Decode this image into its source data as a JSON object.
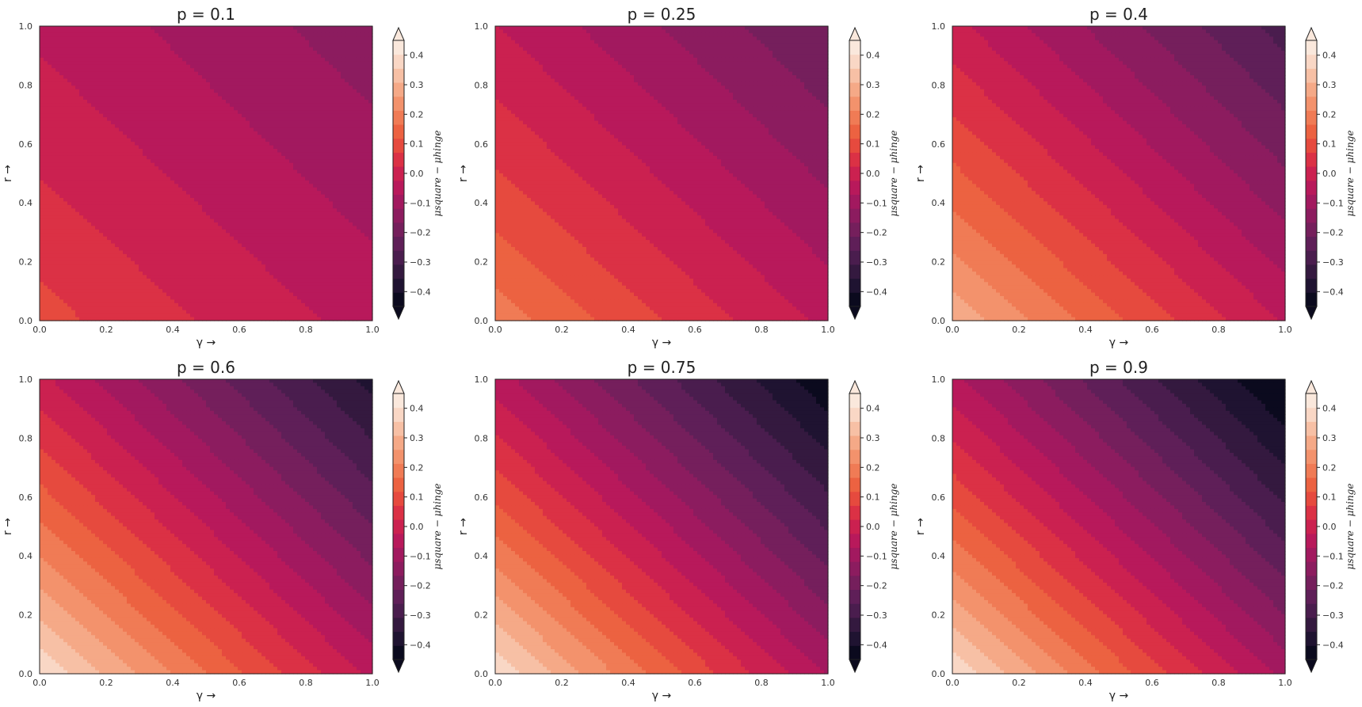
{
  "chart_data": [
    {
      "type": "contour",
      "title": "p = 0.1",
      "p": 0.1,
      "xlabel": "γ →",
      "ylabel": "r →",
      "xlim": [
        0,
        1
      ],
      "ylim": [
        0,
        1
      ],
      "xticks": [
        "0.0",
        "0.2",
        "0.4",
        "0.6",
        "0.8",
        "1.0"
      ],
      "yticks": [
        "0.0",
        "0.2",
        "0.4",
        "0.6",
        "0.8",
        "1.0"
      ],
      "colorbar": {
        "label": "μsquare − μhinge",
        "ticks": [
          "0.4",
          "0.3",
          "0.2",
          "0.1",
          "0.0",
          "−0.1",
          "−0.2",
          "−0.3",
          "−0.4"
        ],
        "range": [
          -0.45,
          0.45
        ],
        "extend": "both"
      },
      "levels_visible": {
        "max_at_origin": 0.1,
        "min_at_top_right": -0.05
      }
    },
    {
      "type": "contour",
      "title": "p = 0.25",
      "p": 0.25,
      "xlabel": "γ →",
      "ylabel": "r →",
      "xlim": [
        0,
        1
      ],
      "ylim": [
        0,
        1
      ],
      "xticks": [
        "0.0",
        "0.2",
        "0.4",
        "0.6",
        "0.8",
        "1.0"
      ],
      "yticks": [
        "0.0",
        "0.2",
        "0.4",
        "0.6",
        "0.8",
        "1.0"
      ],
      "colorbar": {
        "label": "μsquare − μhinge",
        "ticks": [
          "0.4",
          "0.3",
          "0.2",
          "0.1",
          "0.0",
          "−0.1",
          "−0.2",
          "−0.3",
          "−0.4"
        ],
        "range": [
          -0.45,
          0.45
        ],
        "extend": "both"
      },
      "levels_visible": {
        "max_at_origin": 0.25,
        "min_at_top_right": -0.12
      }
    },
    {
      "type": "contour",
      "title": "p = 0.4",
      "p": 0.4,
      "xlabel": "γ →",
      "ylabel": "r →",
      "xlim": [
        0,
        1
      ],
      "ylim": [
        0,
        1
      ],
      "xticks": [
        "0.0",
        "0.2",
        "0.4",
        "0.6",
        "0.8",
        "1.0"
      ],
      "yticks": [
        "0.0",
        "0.2",
        "0.4",
        "0.6",
        "0.8",
        "1.0"
      ],
      "colorbar": {
        "label": "μsquare − μhinge",
        "ticks": [
          "0.4",
          "0.3",
          "0.2",
          "0.1",
          "0.0",
          "−0.1",
          "−0.2",
          "−0.3",
          "−0.4"
        ],
        "range": [
          -0.45,
          0.45
        ],
        "extend": "both"
      },
      "levels_visible": {
        "max_at_origin": 0.35,
        "min_at_top_right": -0.2
      }
    },
    {
      "type": "contour",
      "title": "p = 0.6",
      "p": 0.6,
      "xlabel": "γ →",
      "ylabel": "r →",
      "xlim": [
        0,
        1
      ],
      "ylim": [
        0,
        1
      ],
      "xticks": [
        "0.0",
        "0.2",
        "0.4",
        "0.6",
        "0.8",
        "1.0"
      ],
      "yticks": [
        "0.0",
        "0.2",
        "0.4",
        "0.6",
        "0.8",
        "1.0"
      ],
      "colorbar": {
        "label": "μsquare − μhinge",
        "ticks": [
          "0.4",
          "0.3",
          "0.2",
          "0.1",
          "0.0",
          "−0.1",
          "−0.2",
          "−0.3",
          "−0.4"
        ],
        "range": [
          -0.45,
          0.45
        ],
        "extend": "both"
      },
      "levels_visible": {
        "max_at_origin": 0.45,
        "min_at_top_right": -0.3
      }
    },
    {
      "type": "contour",
      "title": "p = 0.75",
      "p": 0.75,
      "xlabel": "γ →",
      "ylabel": "r →",
      "xlim": [
        0,
        1
      ],
      "ylim": [
        0,
        1
      ],
      "xticks": [
        "0.0",
        "0.2",
        "0.4",
        "0.6",
        "0.8",
        "1.0"
      ],
      "yticks": [
        "0.0",
        "0.2",
        "0.4",
        "0.6",
        "0.8",
        "1.0"
      ],
      "colorbar": {
        "label": "μsquare − μhinge",
        "ticks": [
          "0.4",
          "0.3",
          "0.2",
          "0.1",
          "0.0",
          "−0.1",
          "−0.2",
          "−0.3",
          "−0.4"
        ],
        "range": [
          -0.45,
          0.45
        ],
        "extend": "both"
      },
      "levels_visible": {
        "max_at_origin": 0.45,
        "min_at_top_right": -0.4
      }
    },
    {
      "type": "contour",
      "title": "p = 0.9",
      "p": 0.9,
      "xlabel": "γ →",
      "ylabel": "r →",
      "xlim": [
        0,
        1
      ],
      "ylim": [
        0,
        1
      ],
      "xticks": [
        "0.0",
        "0.2",
        "0.4",
        "0.6",
        "0.8",
        "1.0"
      ],
      "yticks": [
        "0.0",
        "0.2",
        "0.4",
        "0.6",
        "0.8",
        "1.0"
      ],
      "colorbar": {
        "label": "μsquare − μhinge",
        "ticks": [
          "0.4",
          "0.3",
          "0.2",
          "0.1",
          "0.0",
          "−0.1",
          "−0.2",
          "−0.3",
          "−0.4"
        ],
        "range": [
          -0.45,
          0.45
        ],
        "extend": "both"
      },
      "levels_visible": {
        "max_at_origin": 0.45,
        "min_at_top_right": -0.45
      }
    }
  ],
  "colormap": {
    "name": "rocket",
    "bins": [
      "#0b0a1e",
      "#1f1331",
      "#34193f",
      "#4a1d4e",
      "#5f1f58",
      "#751f5c",
      "#8c1c5f",
      "#a2195f",
      "#b8195b",
      "#cb2150",
      "#db3145",
      "#e64a3e",
      "#ec6241",
      "#f07b55",
      "#f3926c",
      "#f5a987",
      "#f7c0a5",
      "#f9d7c5",
      "#fae8dc"
    ],
    "under": "#0b0a1e",
    "over": "#fae8dc"
  }
}
